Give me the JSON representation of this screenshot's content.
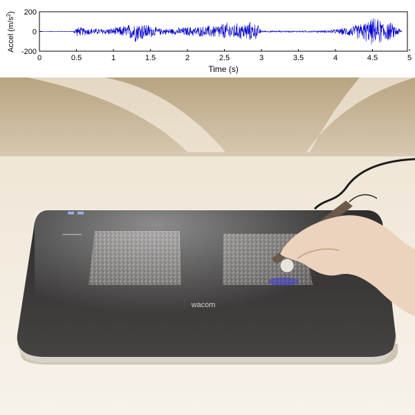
{
  "chart_data": {
    "type": "line",
    "xlabel": "Time (s)",
    "ylabel": "Accel (m/s",
    "ylabel_sup": "2",
    "ylabel_close": ")",
    "xlim": [
      0,
      4.9
    ],
    "ylim": [
      -200,
      200
    ],
    "xticks": [
      "0",
      "0.5",
      "1",
      "1.5",
      "2",
      "2.5",
      "3",
      "3.5",
      "4",
      "4.5",
      "5"
    ],
    "yticks": [
      "200",
      "0",
      "-200"
    ],
    "series_color": "#0000cc",
    "envelope": {
      "t": [
        0,
        0.45,
        0.5,
        0.6,
        0.8,
        1.0,
        1.2,
        1.3,
        1.45,
        1.6,
        1.8,
        2.0,
        2.2,
        2.4,
        2.5,
        2.7,
        2.85,
        2.95,
        3.0,
        3.2,
        3.5,
        3.8,
        4.0,
        4.2,
        4.4,
        4.5,
        4.6,
        4.75,
        4.85,
        4.9
      ],
      "amp": [
        3,
        4,
        55,
        45,
        35,
        40,
        80,
        120,
        90,
        40,
        35,
        55,
        60,
        80,
        100,
        90,
        110,
        80,
        10,
        8,
        8,
        10,
        25,
        60,
        110,
        150,
        140,
        100,
        45,
        10
      ]
    }
  },
  "photo": {
    "tablet_brand": "wacom",
    "colors": {
      "wall": "#c9b79a",
      "desk": "#f4efe4",
      "tablet": "#3b3a3a",
      "pad": "#6a6867",
      "skin": "#f0d7c2"
    }
  }
}
